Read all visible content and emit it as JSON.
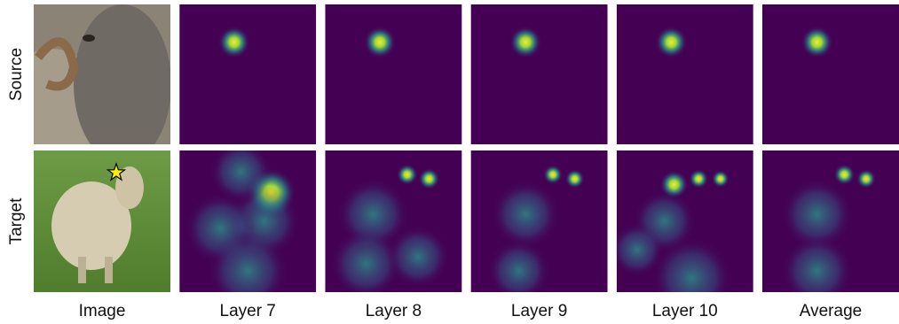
{
  "row_labels": [
    "Source",
    "Target"
  ],
  "column_labels": [
    "Image",
    "Layer 7",
    "Layer 8",
    "Layer 9",
    "Layer 10",
    "Average"
  ]
}
